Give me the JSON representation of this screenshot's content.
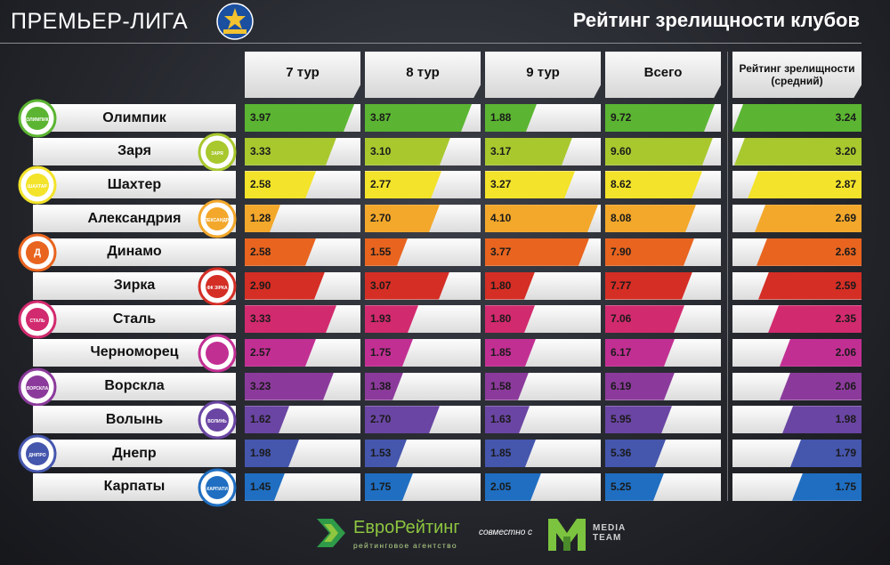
{
  "header": {
    "brand": "ПРЕМЬЕР-ЛИГА",
    "title": "Рейтинг зрелищности клубов"
  },
  "columns": [
    {
      "label": "7 тур"
    },
    {
      "label": "8 тур"
    },
    {
      "label": "9 тур"
    },
    {
      "label": "Всего"
    },
    {
      "label": "Рейтинг зрелищности (средний)"
    }
  ],
  "chart_data": {
    "type": "bar",
    "title": "Рейтинг зрелищности клубов",
    "categories": [
      "Олимпик",
      "Заря",
      "Шахтер",
      "Александрия",
      "Динамо",
      "Зирка",
      "Сталь",
      "Черноморец",
      "Ворскла",
      "Волынь",
      "Днепр",
      "Карпаты"
    ],
    "series": [
      {
        "name": "7 тур",
        "values": [
          3.97,
          3.33,
          2.58,
          1.28,
          2.58,
          2.9,
          3.33,
          2.57,
          3.23,
          1.62,
          1.98,
          1.45
        ],
        "max": 4.2
      },
      {
        "name": "8 тур",
        "values": [
          3.87,
          3.1,
          2.77,
          2.7,
          1.55,
          3.07,
          1.93,
          1.75,
          1.38,
          2.7,
          1.53,
          1.75
        ],
        "max": 4.2
      },
      {
        "name": "9 тур",
        "values": [
          1.88,
          3.17,
          3.27,
          4.1,
          3.77,
          1.8,
          1.8,
          1.85,
          1.58,
          1.63,
          1.85,
          2.05
        ],
        "max": 4.2
      },
      {
        "name": "Всего",
        "values": [
          9.72,
          9.6,
          8.62,
          8.08,
          7.9,
          7.77,
          7.06,
          6.17,
          6.19,
          5.95,
          5.36,
          5.25
        ],
        "max": 10.3
      },
      {
        "name": "Рейтинг зрелищности (средний)",
        "values": [
          3.24,
          3.2,
          2.87,
          2.69,
          2.63,
          2.59,
          2.35,
          2.06,
          2.06,
          1.98,
          1.79,
          1.75
        ],
        "max": 3.24
      }
    ],
    "row_colors": [
      "#5bb532",
      "#a8c82e",
      "#f3e32a",
      "#f3a82b",
      "#e8641f",
      "#d42e25",
      "#d22a6e",
      "#c22f93",
      "#8b3a9b",
      "#6a45a3",
      "#4556ad",
      "#1f6ec1"
    ]
  },
  "logos": [
    {
      "icon": "olimpik-logo",
      "text": "ОЛИМПИК"
    },
    {
      "icon": "zarya-logo",
      "text": "ЗАРЯ"
    },
    {
      "icon": "shakhtar-logo",
      "text": "ШАХТАР"
    },
    {
      "icon": "oleksandriya-logo",
      "text": "ОЛЕКСАНДРІЯ"
    },
    {
      "icon": "dynamo-logo",
      "text": "Д"
    },
    {
      "icon": "zirka-logo",
      "text": "ФК ЗІРКА"
    },
    {
      "icon": "stal-logo",
      "text": "СТАЛЬ"
    },
    {
      "icon": "chornomorets-logo",
      "text": ""
    },
    {
      "icon": "vorskla-logo",
      "text": "ВОРСКЛА"
    },
    {
      "icon": "volyn-logo",
      "text": "ВОЛИНЬ"
    },
    {
      "icon": "dnipro-logo",
      "text": "ДНІПРО"
    },
    {
      "icon": "karpaty-logo",
      "text": "КАРПАТИ"
    }
  ],
  "footer": {
    "eurorating": "ЕвроРейтинг",
    "eurorating_sub": "рейтинговое агентство",
    "joint": "совместно с",
    "media_team_1": "MEDIA",
    "media_team_2": "TEAM"
  }
}
